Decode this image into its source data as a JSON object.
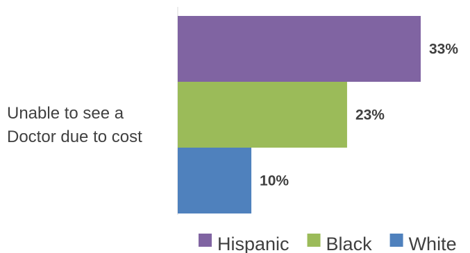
{
  "chart_data": {
    "type": "bar",
    "orientation": "horizontal",
    "categories": [
      "Unable to see a Doctor due to cost"
    ],
    "category_label_lines": [
      "Unable to see a",
      "Doctor due to cost"
    ],
    "series": [
      {
        "name": "Hispanic",
        "values": [
          33
        ],
        "color": "#8064a2",
        "data_label": "33%"
      },
      {
        "name": "Black",
        "values": [
          23
        ],
        "color": "#9bbb59",
        "data_label": "23%"
      },
      {
        "name": "White",
        "values": [
          10
        ],
        "color": "#4f81bd",
        "data_label": "10%"
      }
    ],
    "xlim": [
      0,
      40
    ],
    "unit": "%",
    "grid": false,
    "legend_position": "bottom"
  }
}
